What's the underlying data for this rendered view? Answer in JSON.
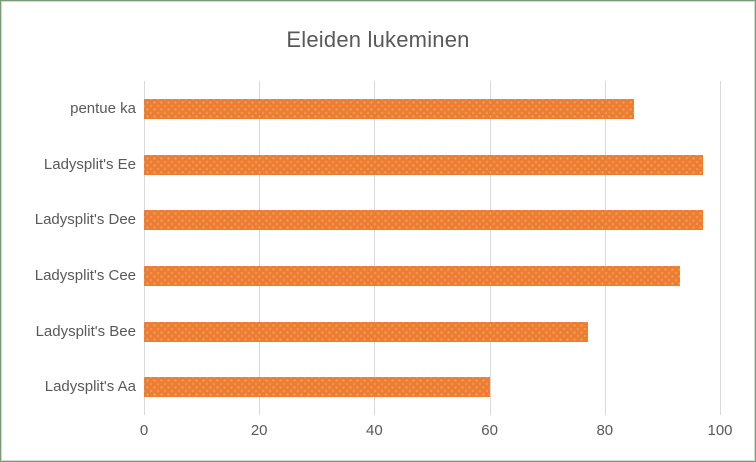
{
  "window": {
    "frame_border_color": "#7a9a7a",
    "frame_border_inner_color": "#cfdacf",
    "background_color": "#ffffff"
  },
  "chart_data": {
    "type": "bar",
    "orientation": "horizontal",
    "title": "Eleiden lukeminen",
    "categories": [
      "pentue ka",
      "Ladysplit's Ee",
      "Ladysplit's Dee",
      "Ladysplit's Cee",
      "Ladysplit's Bee",
      "Ladysplit's Aa"
    ],
    "category_order": "top-to-bottom",
    "values": [
      85,
      97,
      97,
      93,
      77,
      60
    ],
    "xlabel": "",
    "ylabel": "",
    "xlim": [
      0,
      100
    ],
    "xticks": [
      0,
      20,
      40,
      60,
      80,
      100
    ],
    "grid": "vertical-major-only",
    "legend": "none",
    "bar_color": "#ED7D31",
    "gridline_color": "#D9D9D9",
    "text_color": "#595959"
  }
}
